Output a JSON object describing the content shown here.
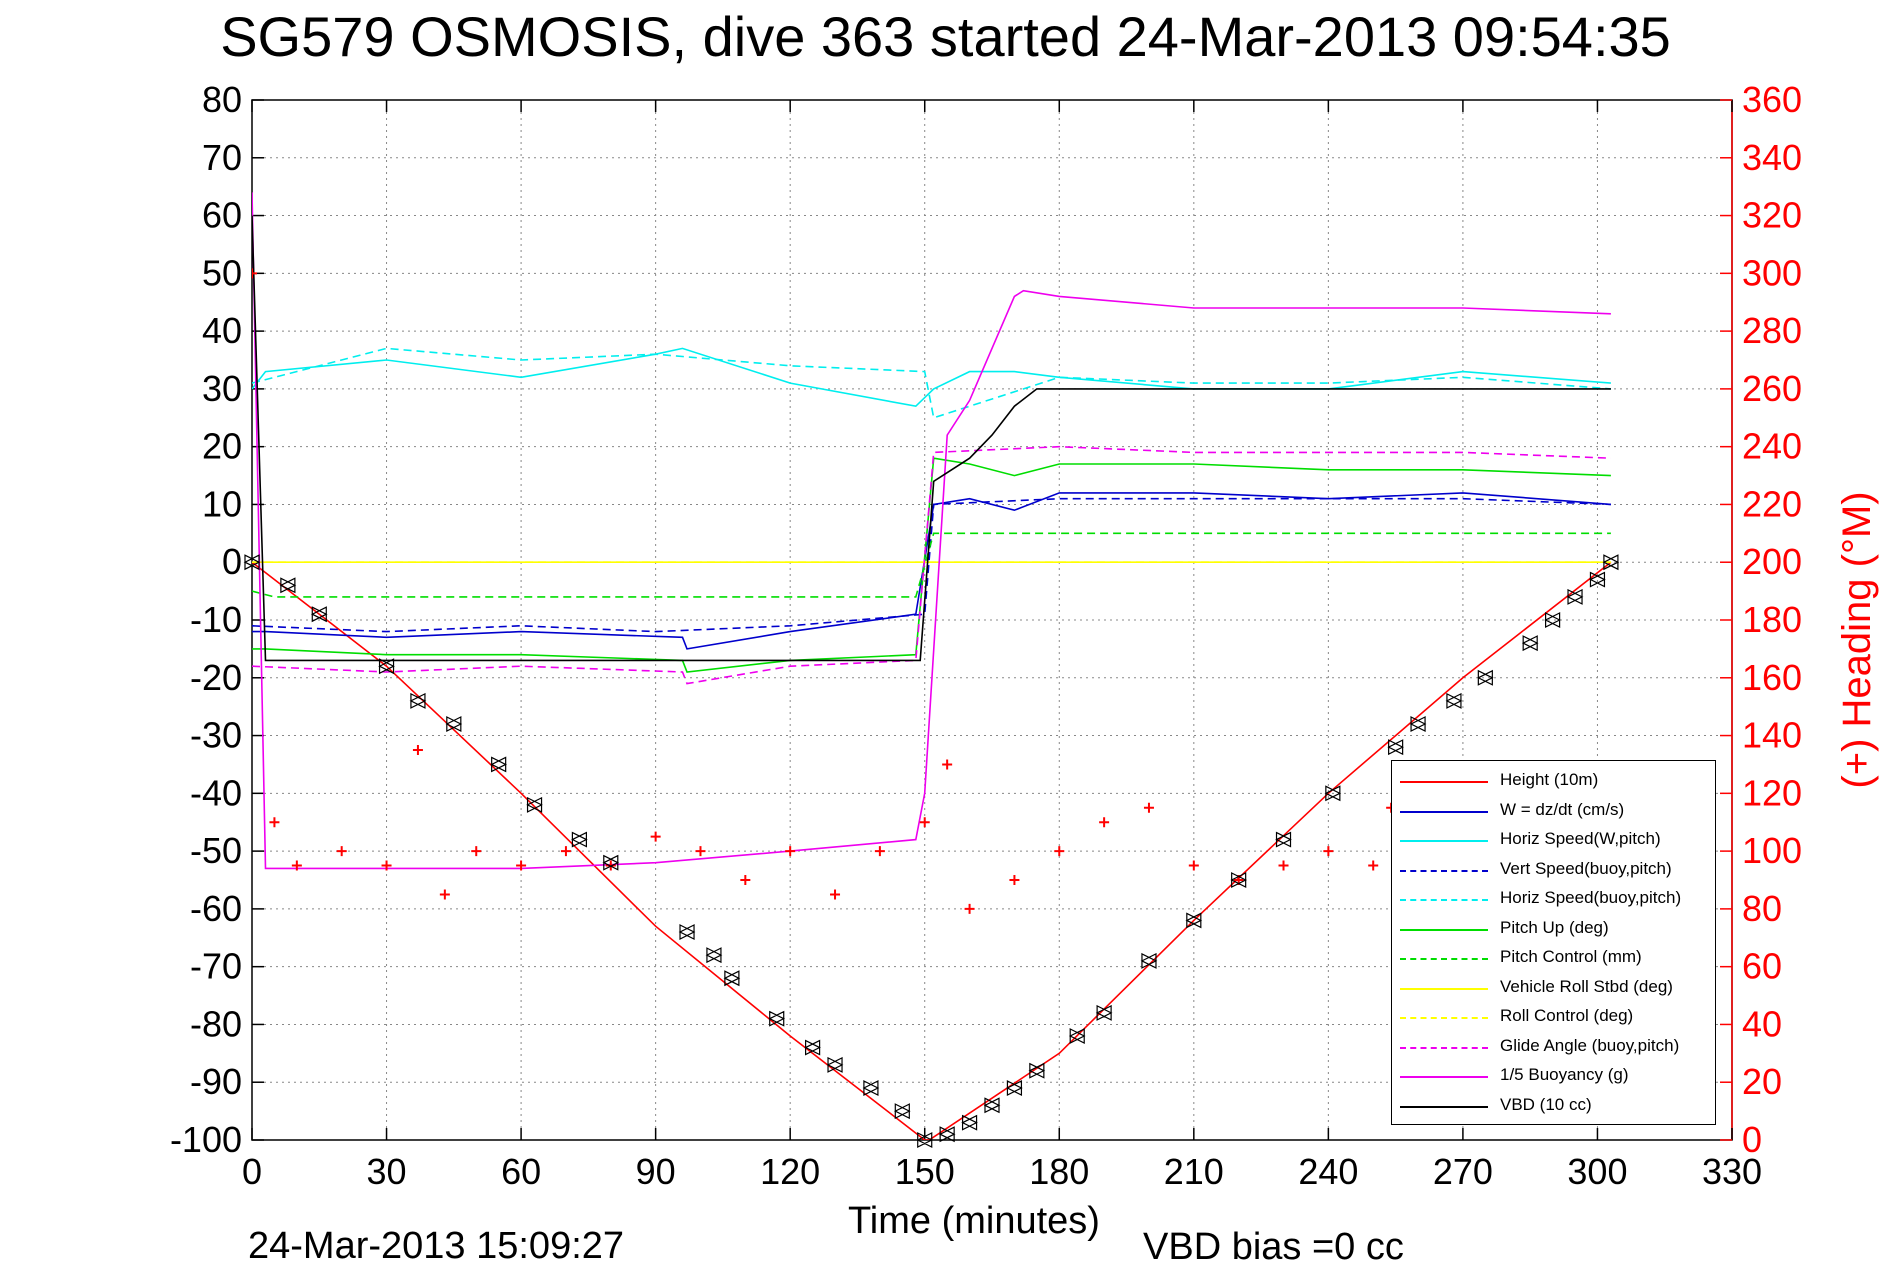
{
  "title": "SG579 OSMOSIS, dive 363 started 24-Mar-2013 09:54:35",
  "timestamp": "24-Mar-2013 15:09:27",
  "vbd_bias": "VBD bias =0 cc",
  "chart_data": {
    "type": "line",
    "title": "SG579 OSMOSIS, dive 363 started 24-Mar-2013 09:54:35",
    "xlabel": "Time (minutes)",
    "ylabel": "",
    "y2label": "(+) Heading (°M)",
    "xlim": [
      0,
      330
    ],
    "ylim": [
      -100,
      80
    ],
    "y2lim": [
      0,
      360
    ],
    "xticks": [
      0,
      30,
      60,
      90,
      120,
      150,
      180,
      210,
      240,
      270,
      300,
      330
    ],
    "yticks": [
      80,
      70,
      60,
      50,
      40,
      30,
      20,
      10,
      0,
      -10,
      -20,
      -30,
      -40,
      -50,
      -60,
      -70,
      -80,
      -90,
      -100
    ],
    "y2ticks": [
      360,
      340,
      320,
      300,
      280,
      260,
      240,
      220,
      200,
      180,
      160,
      140,
      120,
      100,
      80,
      60,
      40,
      20,
      0
    ],
    "grid": true,
    "legend_position": "bottom-right",
    "colors": {
      "height": "#ff0000",
      "w": "#0000cc",
      "horiz_speed": "#00eeee",
      "pitch": "#00dd00",
      "roll": "#ffff00",
      "buoyancy": "#ee00ee",
      "vbd": "#000000",
      "heading": "#ff0000"
    },
    "series": [
      {
        "name": "Height (10m)",
        "color": "#ff0000",
        "style": "solid",
        "x": [
          0,
          30,
          60,
          90,
          120,
          150,
          151,
          180,
          210,
          240,
          270,
          303
        ],
        "y": [
          0,
          -18,
          -40,
          -63,
          -82,
          -100,
          -100,
          -85,
          -62,
          -40,
          -20,
          0
        ]
      },
      {
        "name": "W = dz/dt (cm/s)",
        "color": "#0000cc",
        "style": "solid",
        "x": [
          0,
          3,
          30,
          60,
          96,
          97,
          120,
          148,
          152,
          160,
          170,
          180,
          210,
          240,
          270,
          303
        ],
        "y": [
          -12,
          -12,
          -13,
          -12,
          -13,
          -15,
          -12,
          -9,
          10,
          11,
          9,
          12,
          12,
          11,
          12,
          10
        ]
      },
      {
        "name": "Horiz Speed(W,pitch)",
        "color": "#00eeee",
        "style": "solid",
        "x": [
          0,
          3,
          30,
          60,
          90,
          96,
          120,
          148,
          152,
          160,
          170,
          180,
          210,
          240,
          270,
          303
        ],
        "y": [
          30,
          33,
          35,
          32,
          36,
          37,
          31,
          27,
          30,
          33,
          33,
          32,
          30,
          30,
          33,
          31
        ]
      },
      {
        "name": "Vert Speed(buoy,pitch)",
        "color": "#0000cc",
        "style": "dashed",
        "x": [
          0,
          30,
          60,
          90,
          120,
          150,
          152,
          180,
          210,
          240,
          270,
          303
        ],
        "y": [
          -11,
          -12,
          -11,
          -12,
          -11,
          -9,
          10,
          11,
          11,
          11,
          11,
          10
        ]
      },
      {
        "name": "Horiz Speed(buoy,pitch)",
        "color": "#00eeee",
        "style": "dashed",
        "x": [
          0,
          30,
          60,
          90,
          120,
          150,
          152,
          180,
          210,
          240,
          270,
          303
        ],
        "y": [
          31,
          37,
          35,
          36,
          34,
          33,
          25,
          32,
          31,
          31,
          32,
          30
        ]
      },
      {
        "name": "Pitch Up (deg)",
        "color": "#00dd00",
        "style": "solid",
        "x": [
          0,
          3,
          30,
          60,
          96,
          97,
          120,
          148,
          152,
          160,
          170,
          180,
          210,
          240,
          270,
          303
        ],
        "y": [
          -15,
          -15,
          -16,
          -16,
          -17,
          -19,
          -17,
          -16,
          18,
          17,
          15,
          17,
          17,
          16,
          16,
          15
        ]
      },
      {
        "name": "Pitch Control (mm)",
        "color": "#00dd00",
        "style": "dashed",
        "x": [
          0,
          5,
          30,
          60,
          90,
          120,
          148,
          152,
          180,
          210,
          240,
          270,
          303
        ],
        "y": [
          -5,
          -6,
          -6,
          -6,
          -6,
          -6,
          -6,
          5,
          5,
          5,
          5,
          5,
          5
        ]
      },
      {
        "name": "Vehicle Roll Stbd (deg)",
        "color": "#ffff00",
        "style": "solid",
        "x": [
          0,
          10,
          30,
          60,
          90,
          120,
          148,
          152,
          180,
          210,
          240,
          270,
          303
        ],
        "y": [
          0,
          0,
          0,
          0,
          0,
          0,
          0,
          0,
          0,
          0,
          0,
          0,
          0
        ]
      },
      {
        "name": "Roll Control (deg)",
        "color": "#ffff00",
        "style": "dashed",
        "x": [
          0,
          30,
          60,
          90,
          120,
          150,
          180,
          210,
          240,
          270,
          303
        ],
        "y": [
          0,
          0,
          0,
          0,
          0,
          0,
          0,
          0,
          0,
          0,
          0
        ]
      },
      {
        "name": "Glide Angle (buoy,pitch)",
        "color": "#ee00ee",
        "style": "dashed",
        "x": [
          0,
          30,
          60,
          96,
          97,
          120,
          148,
          152,
          180,
          210,
          240,
          270,
          303
        ],
        "y": [
          -18,
          -19,
          -18,
          -19,
          -21,
          -18,
          -17,
          19,
          20,
          19,
          19,
          19,
          18
        ]
      },
      {
        "name": "1/5 Buoyancy (g)",
        "color": "#ee00ee",
        "style": "solid",
        "x": [
          0,
          3,
          30,
          60,
          90,
          120,
          148,
          150,
          155,
          160,
          170,
          172,
          180,
          210,
          240,
          270,
          303
        ],
        "y": [
          64,
          -53,
          -53,
          -53,
          -52,
          -50,
          -48,
          -40,
          22,
          28,
          46,
          47,
          46,
          44,
          44,
          44,
          43
        ]
      },
      {
        "name": "VBD (10 cc)",
        "color": "#000000",
        "style": "solid",
        "x": [
          0,
          3,
          30,
          60,
          90,
          120,
          149,
          152,
          160,
          165,
          170,
          175,
          180,
          210,
          240,
          270,
          303
        ],
        "y": [
          60,
          -17,
          -17,
          -17,
          -17,
          -17,
          -17,
          14,
          18,
          22,
          27,
          30,
          30,
          30,
          30,
          30,
          30
        ]
      }
    ],
    "heading_series": {
      "name": "(+) Heading (°M)",
      "color": "#ff0000",
      "style": "marker-plus",
      "x": [
        0,
        5,
        10,
        20,
        30,
        37,
        43,
        50,
        60,
        70,
        80,
        90,
        100,
        110,
        120,
        130,
        140,
        150,
        155,
        160,
        170,
        180,
        190,
        200,
        210,
        220,
        230,
        240,
        250,
        254
      ],
      "y": [
        300,
        110,
        95,
        100,
        95,
        135,
        85,
        100,
        95,
        100,
        95,
        105,
        100,
        90,
        100,
        85,
        100,
        110,
        130,
        80,
        90,
        100,
        110,
        115,
        95,
        90,
        95,
        100,
        95,
        115
      ]
    },
    "markers_series": {
      "name": "",
      "color": "#000000",
      "style": "marker-triangle",
      "x": [
        0,
        8,
        15,
        30,
        37,
        45,
        55,
        63,
        73,
        80,
        97,
        103,
        107,
        117,
        125,
        130,
        138,
        145,
        150,
        155,
        160,
        165,
        170,
        175,
        184,
        190,
        200,
        210,
        220,
        230,
        241,
        255,
        260,
        268,
        275,
        285,
        290,
        295,
        300,
        303
      ],
      "y": [
        0,
        -4,
        -9,
        -18,
        -24,
        -28,
        -35,
        -42,
        -48,
        -52,
        -64,
        -68,
        -72,
        -79,
        -84,
        -87,
        -91,
        -95,
        -100,
        -99,
        -97,
        -94,
        -91,
        -88,
        -82,
        -78,
        -69,
        -62,
        -55,
        -48,
        -40,
        -32,
        -28,
        -24,
        -20,
        -14,
        -10,
        -6,
        -3,
        0
      ]
    }
  }
}
